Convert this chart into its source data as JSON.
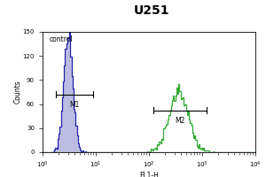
{
  "title": "U251",
  "xlabel": "FL1-H",
  "ylabel": "Counts",
  "control_label": "control",
  "m1_label": "M1",
  "m2_label": "M2",
  "xlim": [
    1.0,
    10000.0
  ],
  "ylim": [
    0,
    150
  ],
  "yticks": [
    0,
    30,
    60,
    90,
    120,
    150
  ],
  "control_color": "#2222aa",
  "control_fill": "#8888cc",
  "sample_color": "#33aa33",
  "background_color": "#ffffff",
  "plot_bg_color": "#ffffff",
  "title_fontsize": 10,
  "label_fontsize": 5.5,
  "tick_fontsize": 5,
  "ctrl_peak": 150,
  "samp_peak": 85,
  "ctrl_mean_log": 1.1,
  "ctrl_sigma": 0.2,
  "samp_mean_log": 5.9,
  "samp_sigma": 0.42,
  "m1_x1": 1.8,
  "m1_x2": 9.0,
  "m1_y": 72,
  "m2_x1": 120,
  "m2_x2": 1200,
  "m2_y": 52
}
